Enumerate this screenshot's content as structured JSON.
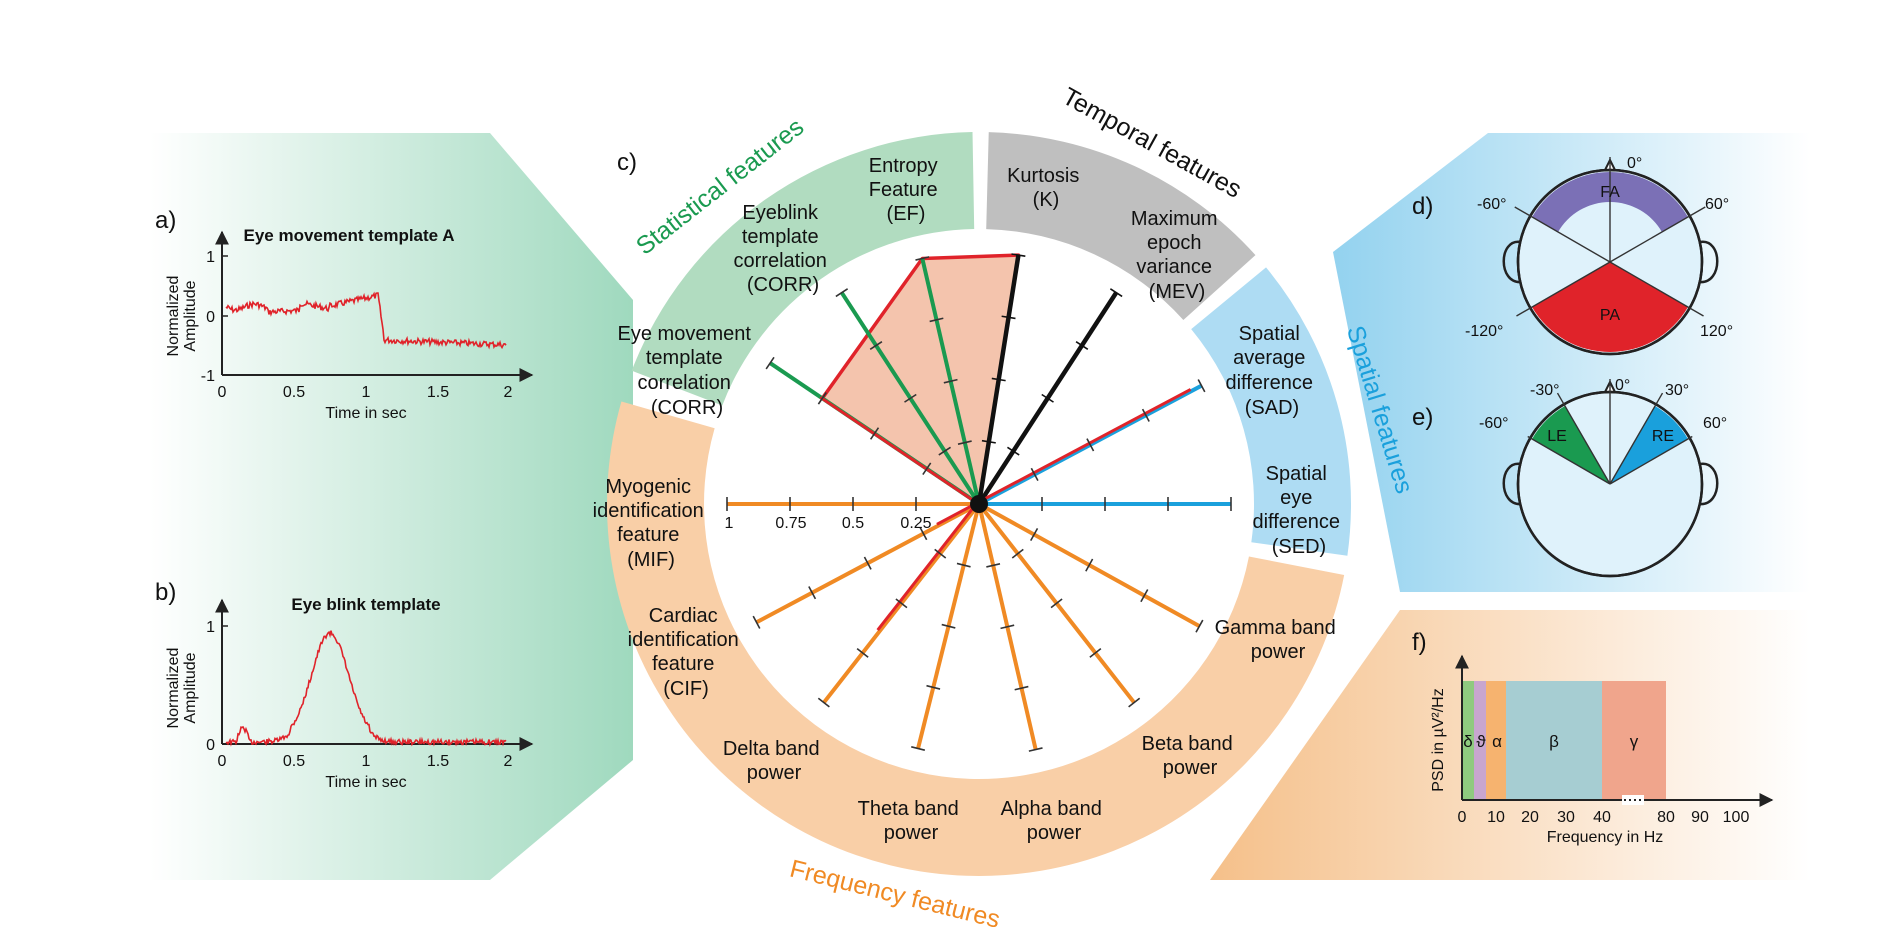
{
  "panel_labels": {
    "a": "a)",
    "b": "b)",
    "c": "c)",
    "d": "d)",
    "e": "e)",
    "f": "f)"
  },
  "panel_a": {
    "title": "Eye movement template A",
    "ylabel_line1": "Normalized",
    "ylabel_line2": "Amplitude",
    "xlabel": "Time in sec",
    "yticks": [
      "1",
      "0",
      "-1"
    ],
    "xticks": [
      "0",
      "0.5",
      "1",
      "1.5",
      "2"
    ]
  },
  "panel_b": {
    "title": "Eye blink template",
    "ylabel_line1": "Normalized",
    "ylabel_line2": "Amplitude",
    "xlabel": "Time in sec",
    "yticks": [
      "1",
      "0"
    ],
    "xticks": [
      "0",
      "0.5",
      "1",
      "1.5",
      "2"
    ]
  },
  "groups": {
    "statistical": "Statistical features",
    "temporal": "Temporal features",
    "spatial": "Spatial features",
    "frequency": "Frequency features"
  },
  "features": {
    "ef": [
      "Entropy",
      "Feature",
      "(EF)"
    ],
    "corr_blink": [
      "Eyeblink",
      "template",
      "correlation",
      "(CORR)"
    ],
    "corr_move": [
      "Eye movement",
      "template",
      "correlation",
      "(CORR)"
    ],
    "k": [
      "Kurtosis",
      "(K)"
    ],
    "mev": [
      "Maximum",
      "epoch",
      "variance",
      "(MEV)"
    ],
    "sad": [
      "Spatial",
      "average",
      "difference",
      "(SAD)"
    ],
    "sed": [
      "Spatial",
      "eye",
      "difference",
      "(SED)"
    ],
    "mif": [
      "Myogenic",
      "identification",
      "feature",
      "(MIF)"
    ],
    "cif": [
      "Cardiac",
      "identification",
      "feature",
      "(CIF)"
    ],
    "delta": [
      "Delta band",
      "power"
    ],
    "theta": [
      "Theta band",
      "power"
    ],
    "alpha": [
      "Alpha band",
      "power"
    ],
    "beta": [
      "Beta band",
      "power"
    ],
    "gamma": [
      "Gamma band",
      "power"
    ]
  },
  "radial_scale_labels": [
    "1",
    "0.75",
    "0.5",
    "0.25"
  ],
  "head_d": {
    "angles": {
      "top": "0°",
      "ul": "-60°",
      "ur": "60°",
      "ll": "-120°",
      "lr": "120°"
    },
    "front_area": "FA",
    "posterior_area": "PA"
  },
  "head_e": {
    "angles": {
      "top": "0°",
      "l30": "-30°",
      "r30": "30°",
      "l60": "-60°",
      "r60": "60°"
    },
    "left_eye": "LE",
    "right_eye": "RE"
  },
  "panel_f": {
    "ylabel": "PSD in µV²/Hz",
    "xlabel": "Frequency in Hz",
    "xticks": [
      "0",
      "10",
      "20",
      "30",
      "40",
      "80",
      "90",
      "100"
    ],
    "bands": [
      "δ",
      "ϑ",
      "α",
      "β",
      "γ"
    ]
  },
  "colors": {
    "statistical": "#1a9a50",
    "temporal": "#111111",
    "spatial": "#1aa0dc",
    "frequency": "#f08a24",
    "highlight": "#e0232a"
  }
}
